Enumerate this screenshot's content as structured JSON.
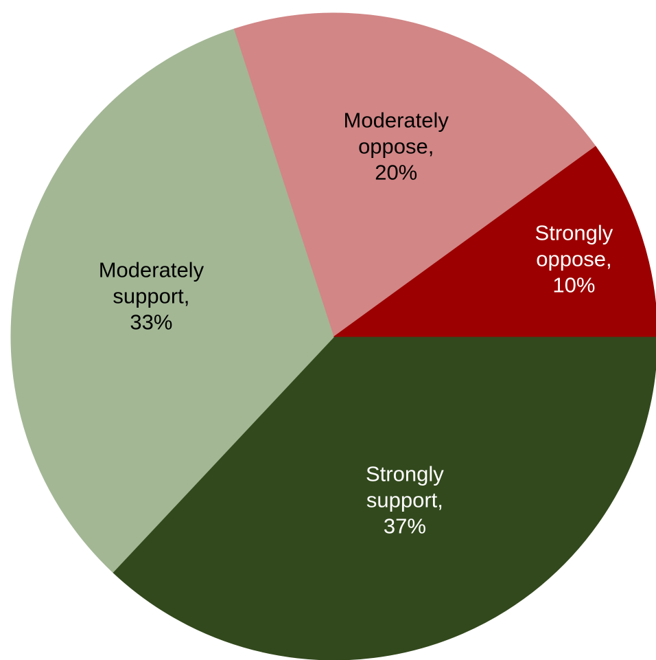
{
  "chart_data": {
    "type": "pie",
    "slices": [
      {
        "label": "Strongly support",
        "value": 37,
        "color": "#32491d",
        "text_color": "#ffffff",
        "display": [
          "Strongly",
          "support,",
          "37%"
        ]
      },
      {
        "label": "Moderately support",
        "value": 33,
        "color": "#a3b795",
        "text_color": "#000000",
        "display": [
          "Moderately",
          "support,",
          "33%"
        ]
      },
      {
        "label": "Moderately oppose",
        "value": 20,
        "color": "#d28686",
        "text_color": "#000000",
        "display": [
          "Moderately",
          "oppose,",
          "20%"
        ]
      },
      {
        "label": "Strongly oppose",
        "value": 10,
        "color": "#9c0000",
        "text_color": "#ffffff",
        "display": [
          "Strongly",
          "oppose,",
          "10%"
        ]
      }
    ],
    "start_angle_deg": 0,
    "direction": "clockwise",
    "legend": "none",
    "title": ""
  }
}
